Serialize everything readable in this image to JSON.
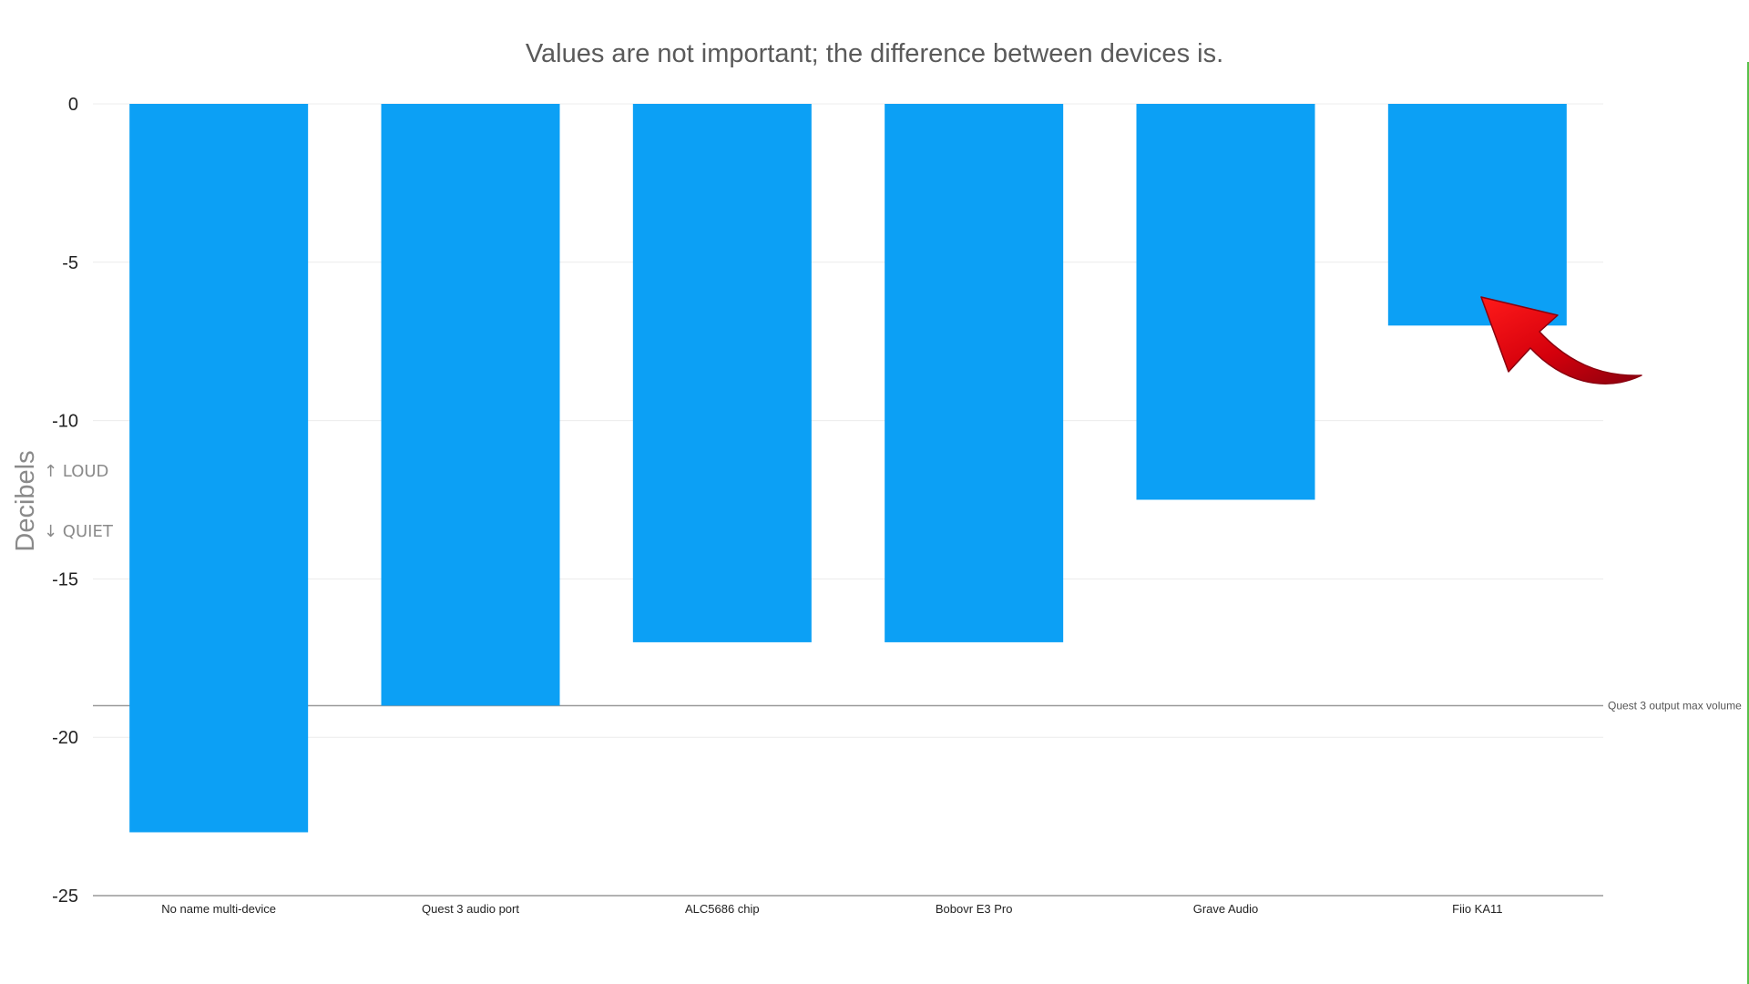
{
  "chart_data": {
    "type": "bar",
    "title": "Values are not important; the difference between devices is.",
    "xlabel": "",
    "ylabel": "Decibels",
    "y_annotations": {
      "up": "↑ LOUD",
      "down": "↓ QUIET"
    },
    "ylim": [
      -25,
      0
    ],
    "yticks": [
      0,
      -5,
      -10,
      -15,
      -20,
      -25
    ],
    "grid": true,
    "categories": [
      "No name multi-device",
      "Quest 3 audio port",
      "ALC5686 chip",
      "Bobovr E3 Pro",
      "Grave Audio",
      "Fiio KA11"
    ],
    "values": [
      -23,
      -19,
      -17,
      -17,
      -12.5,
      -7
    ],
    "reference_line": {
      "label": "Quest 3 output max volume",
      "value": -19
    },
    "highlight": {
      "category": "Fiio KA11",
      "marker": "red-arrow"
    },
    "colors": {
      "bar": "#0ca0f5",
      "grid": "#ececec",
      "axis": "#999999",
      "reference": "#999999",
      "title": "#5a5a5a",
      "tick_text": "#222222",
      "ylabel": "#8a8a8a",
      "arrow": "#d4000c",
      "arrow_dark": "#9c0010"
    }
  }
}
